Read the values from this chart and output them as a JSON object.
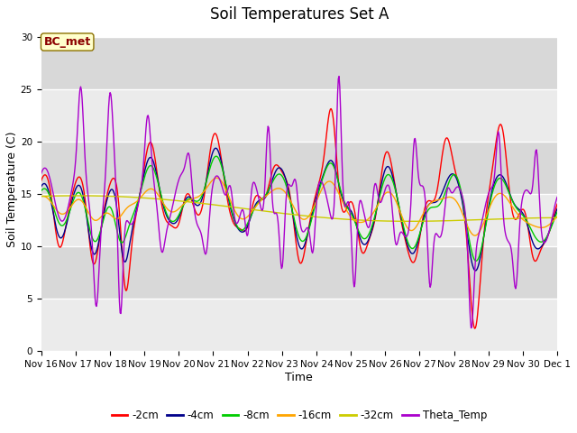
{
  "title": "Soil Temperatures Set A",
  "xlabel": "Time",
  "ylabel": "Soil Temperature (C)",
  "ylim": [
    0,
    31
  ],
  "annotation_text": "BC_met",
  "annotation_color": "#8B0000",
  "annotation_bg": "#FFFFCC",
  "bg_light": "#F0F0F0",
  "bg_dark": "#DCDCDC",
  "series_colors": {
    "-2cm": "#FF0000",
    "-4cm": "#00008B",
    "-8cm": "#00CC00",
    "-16cm": "#FFA500",
    "-32cm": "#CCCC00",
    "Theta_Temp": "#AA00CC"
  },
  "yticks": [
    0,
    5,
    10,
    15,
    20,
    25,
    30
  ],
  "xtick_labels": [
    "Nov 16",
    "Nov 17",
    "Nov 18",
    "Nov 19",
    "Nov 20",
    "Nov 21",
    "Nov 22",
    "Nov 23",
    "Nov 24",
    "Nov 25",
    "Nov 26",
    "Nov 27",
    "Nov 28",
    "Nov 29",
    "Nov 30",
    "Dec 1"
  ],
  "title_fontsize": 12,
  "axis_label_fontsize": 9,
  "tick_fontsize": 7.5,
  "legend_fontsize": 8.5,
  "n_days": 15
}
